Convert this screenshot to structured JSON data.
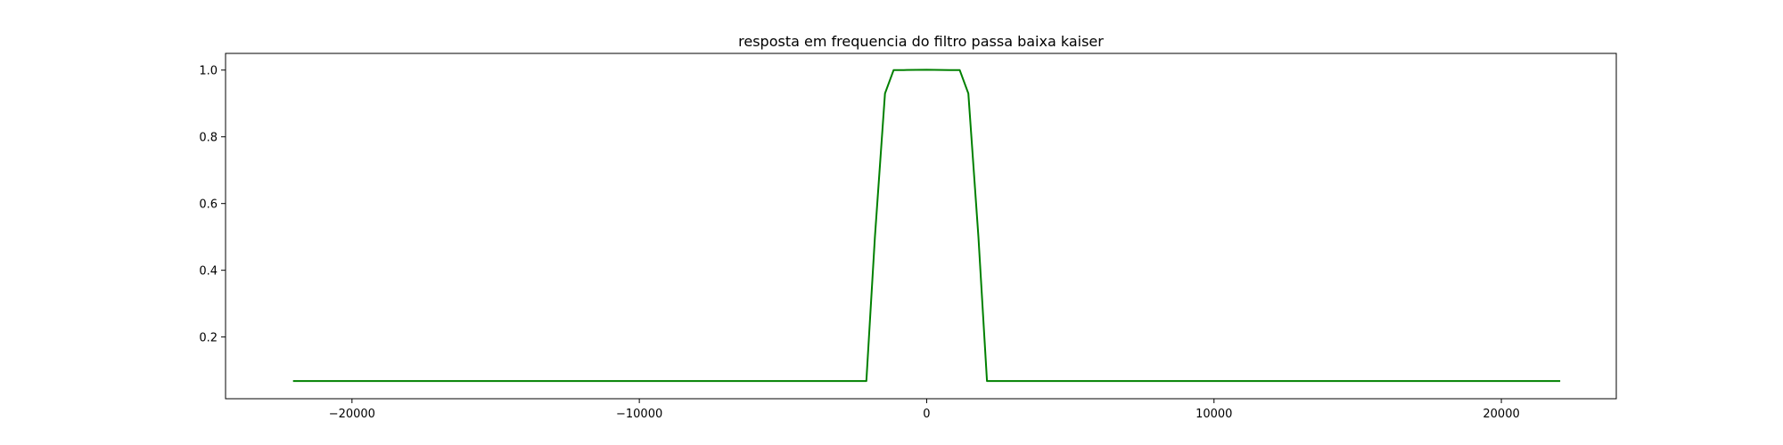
{
  "chart_data": {
    "type": "line",
    "title": "resposta em frequencia do filtro passa baixa kaiser",
    "xlabel": "",
    "ylabel": "",
    "xlim": [
      -24400,
      24000
    ],
    "ylim": [
      0.015,
      1.05
    ],
    "xticks": [
      -20000,
      -10000,
      0,
      10000,
      20000
    ],
    "xtick_labels": [
      "−20000",
      "−10000",
      "0",
      "10000",
      "20000"
    ],
    "yticks": [
      0.2,
      0.4,
      0.6,
      0.8,
      1.0
    ],
    "ytick_labels": [
      "0.2",
      "0.4",
      "0.6",
      "0.8",
      "1.0"
    ],
    "grid": false,
    "legend": "none",
    "series": [
      {
        "color": "#008000",
        "x": [
          -22050,
          -3000,
          -2100,
          -1800,
          -1450,
          -1150,
          -800,
          0,
          800,
          1150,
          1450,
          1800,
          2100,
          3000,
          22050
        ],
        "y": [
          0.068,
          0.068,
          0.068,
          0.5,
          0.93,
          1.0,
          1.0,
          1.001,
          1.0,
          1.0,
          0.93,
          0.5,
          0.068,
          0.068,
          0.068
        ]
      }
    ]
  }
}
